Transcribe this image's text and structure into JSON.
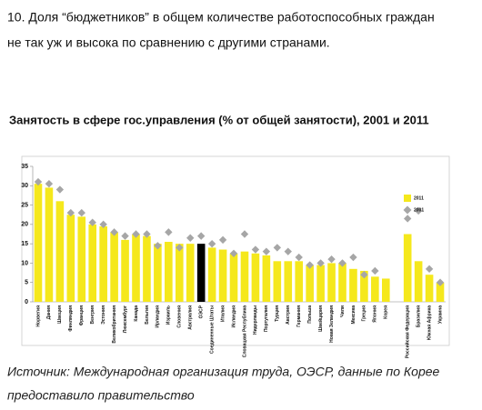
{
  "header": {
    "lines": [
      "10. Доля “бюджетников” в общем количестве работоспособных граждан",
      "не так уж и высока по сравнению с другими странами."
    ]
  },
  "chart_data": {
    "type": "bar",
    "title": "Занятость в сфере гос.управления (% от общей занятости), 2001 и 2011",
    "categories": [
      "Норвегия",
      "Дания",
      "Швеция",
      "Финляндия",
      "Франция",
      "Венгрия",
      "Эстония",
      "Великобритания",
      "Люксембург",
      "Канада",
      "Бельгия",
      "Ирландия",
      "Израиль",
      "Словения",
      "Австралия",
      "ОЭСР",
      "Соединенные Штаты",
      "Италия",
      "Исландия",
      "Словацкая Республика",
      "Нидерланды",
      "Португалия",
      "Турция",
      "Австрия",
      "Германия",
      "Польша",
      "Швейцария",
      "Новая Зеландия",
      "Чили",
      "Мексика",
      "Греция",
      "Япония",
      "Корея",
      null,
      "Российская Федерация",
      "Бразилия",
      "Южная Африка",
      "Украина"
    ],
    "series": [
      {
        "name": "2011",
        "color": "#f5e81c",
        "values": [
          30.5,
          29.5,
          26,
          22.5,
          22,
          20,
          19.5,
          18,
          16,
          17.5,
          17,
          15,
          15.5,
          15,
          15,
          15,
          14,
          13.5,
          12.5,
          13,
          12.5,
          12,
          10.5,
          10.5,
          10.5,
          9.5,
          9.5,
          10,
          10,
          8.5,
          8,
          6.5,
          6,
          null,
          17.5,
          10.5,
          7,
          5
        ]
      },
      {
        "name": "2001",
        "color": "#a6a6a6",
        "values": [
          31,
          30.5,
          29,
          23,
          23,
          20.5,
          20,
          18,
          17,
          17.5,
          17.5,
          14.5,
          18,
          14,
          16.5,
          17,
          15,
          16,
          12.5,
          17.5,
          13.5,
          13,
          14,
          13,
          11.5,
          9.5,
          10,
          11,
          10,
          11.5,
          7,
          8,
          null,
          null,
          21.5,
          23.5,
          8.5,
          5
        ]
      }
    ],
    "highlight_category": "ОЭСР",
    "highlight_color": "#000000",
    "ylim": [
      0,
      35
    ],
    "yticks": [
      0,
      5,
      10,
      15,
      20,
      25,
      30,
      35
    ],
    "legend": "upper right"
  },
  "source": {
    "lines": [
      "Источник: Международная организация труда, ОЭСР, данные по Корее",
      "предоставило правительство"
    ]
  }
}
